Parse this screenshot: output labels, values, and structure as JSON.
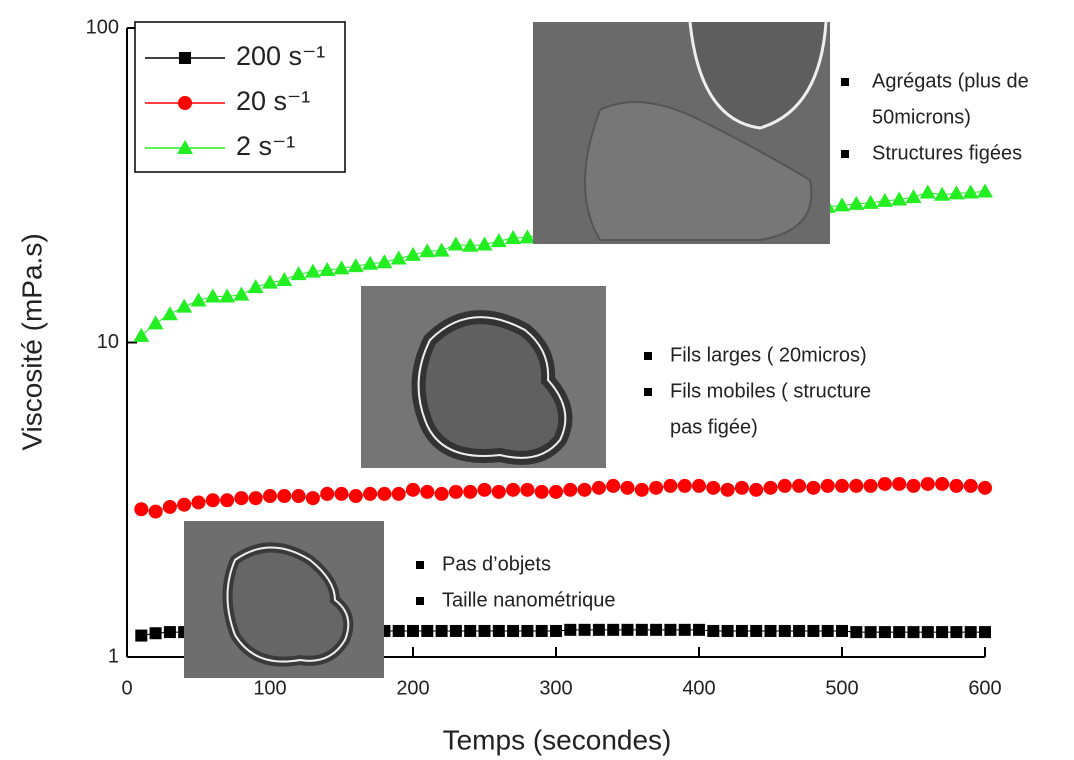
{
  "chart_data": {
    "type": "line",
    "x_label": "Temps (secondes)",
    "y_label": "Viscosité (mPa.s)",
    "x": [
      10,
      20,
      30,
      40,
      50,
      60,
      70,
      80,
      90,
      100,
      110,
      120,
      130,
      140,
      150,
      160,
      170,
      180,
      190,
      200,
      210,
      220,
      230,
      240,
      250,
      260,
      270,
      280,
      290,
      300,
      310,
      320,
      330,
      340,
      350,
      360,
      370,
      380,
      390,
      400,
      410,
      420,
      430,
      440,
      450,
      460,
      470,
      480,
      490,
      500,
      510,
      520,
      530,
      540,
      550,
      560,
      570,
      580,
      590,
      600
    ],
    "series": [
      {
        "name": "200 s⁻¹",
        "color": "#000000",
        "marker": "square",
        "values": [
          1.17,
          1.19,
          1.2,
          1.2,
          1.2,
          1.2,
          1.2,
          1.2,
          1.2,
          1.2,
          1.21,
          1.21,
          1.21,
          1.21,
          1.21,
          1.21,
          1.21,
          1.21,
          1.21,
          1.21,
          1.21,
          1.21,
          1.21,
          1.21,
          1.21,
          1.21,
          1.21,
          1.21,
          1.21,
          1.21,
          1.22,
          1.22,
          1.22,
          1.22,
          1.22,
          1.22,
          1.22,
          1.22,
          1.22,
          1.22,
          1.21,
          1.21,
          1.21,
          1.21,
          1.21,
          1.21,
          1.21,
          1.21,
          1.21,
          1.21,
          1.2,
          1.2,
          1.2,
          1.2,
          1.2,
          1.2,
          1.2,
          1.2,
          1.2,
          1.2
        ]
      },
      {
        "name": "20 s⁻¹",
        "color": "#ff0000",
        "marker": "circle",
        "values": [
          2.95,
          2.9,
          3.0,
          3.05,
          3.1,
          3.15,
          3.15,
          3.2,
          3.2,
          3.25,
          3.25,
          3.25,
          3.2,
          3.3,
          3.3,
          3.25,
          3.3,
          3.3,
          3.3,
          3.4,
          3.35,
          3.3,
          3.35,
          3.35,
          3.4,
          3.35,
          3.4,
          3.4,
          3.35,
          3.35,
          3.4,
          3.4,
          3.45,
          3.5,
          3.45,
          3.4,
          3.45,
          3.5,
          3.5,
          3.5,
          3.45,
          3.4,
          3.45,
          3.4,
          3.45,
          3.5,
          3.5,
          3.45,
          3.5,
          3.5,
          3.5,
          3.5,
          3.55,
          3.55,
          3.5,
          3.55,
          3.55,
          3.5,
          3.5,
          3.45
        ]
      },
      {
        "name": "2 s⁻¹",
        "color": "#22ee22",
        "marker": "triangle",
        "values": [
          10.5,
          11.5,
          12.3,
          13,
          13.6,
          14,
          14,
          14.2,
          15,
          15.5,
          15.8,
          16.5,
          16.8,
          17,
          17.2,
          17.5,
          17.8,
          18,
          18.5,
          19,
          19.5,
          19.6,
          20.5,
          20.3,
          20.5,
          21,
          21.5,
          21.6,
          22,
          22.3,
          22.5,
          22.8,
          23,
          23.3,
          23.5,
          23.8,
          24,
          24.3,
          24.5,
          24.8,
          25,
          25.3,
          25.5,
          25.8,
          26,
          26.3,
          26.5,
          26.8,
          27,
          27.3,
          27.6,
          27.8,
          28.2,
          28.5,
          29,
          30,
          29.5,
          29.8,
          30,
          30.2
        ]
      }
    ],
    "xlim": [
      0,
      600
    ],
    "xticks": [
      0,
      100,
      200,
      300,
      400,
      500,
      600
    ],
    "ylim": [
      1,
      100
    ],
    "yticks": [
      1,
      10,
      100
    ],
    "log_y": true,
    "legend": "top-left",
    "annotations": [
      {
        "items": [
          [
            "Agrégats (plus de",
            "50microns)"
          ],
          [
            "Structures figées"
          ]
        ]
      },
      {
        "items": [
          [
            "Fils larges  ( 20micros)"
          ],
          [
            "Fils mobiles ( structure",
            "pas figée)"
          ]
        ]
      },
      {
        "items": [
          [
            "Pas d’objets"
          ],
          [
            "Taille nanométrique"
          ]
        ]
      }
    ]
  }
}
